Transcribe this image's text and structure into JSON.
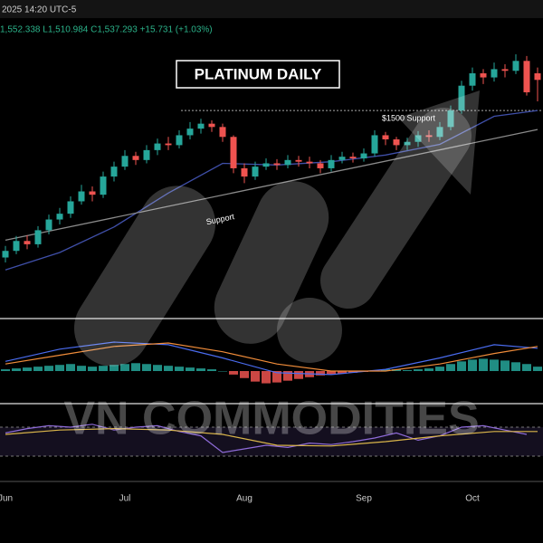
{
  "header": {
    "datetime": "2025 14:20 UTC-5",
    "ohlc": "1,552.338 L1,510.984 C1,537.293 +15.731 (+1.03%)"
  },
  "watermark": "VN COMMODITIES",
  "chart_data": [
    {
      "type": "candlestick",
      "title": "PLATINUM DAILY",
      "up_color": "#26a69a",
      "down_color": "#ef5350",
      "categories": [
        "Jun",
        null,
        null,
        null,
        null,
        null,
        null,
        null,
        null,
        null,
        null,
        "Jul",
        null,
        null,
        null,
        null,
        null,
        null,
        null,
        null,
        null,
        null,
        "Aug",
        null,
        null,
        null,
        null,
        null,
        null,
        null,
        null,
        null,
        null,
        "Sep",
        null,
        null,
        null,
        null,
        null,
        null,
        null,
        null,
        null,
        "Oct",
        null,
        null,
        null,
        null,
        null,
        null
      ],
      "open": [
        1322,
        1330,
        1342,
        1338,
        1355,
        1368,
        1375,
        1390,
        1402,
        1398,
        1420,
        1432,
        1445,
        1440,
        1452,
        1460,
        1458,
        1470,
        1478,
        1484,
        1480,
        1468,
        1430,
        1420,
        1432,
        1436,
        1434,
        1440,
        1438,
        1436,
        1430,
        1440,
        1444,
        1442,
        1448,
        1470,
        1465,
        1458,
        1462,
        1470,
        1468,
        1480,
        1500,
        1530,
        1545,
        1540,
        1550,
        1548,
        1560,
        1545
      ],
      "high": [
        1336,
        1348,
        1349,
        1360,
        1374,
        1382,
        1396,
        1410,
        1408,
        1426,
        1438,
        1452,
        1450,
        1458,
        1466,
        1468,
        1476,
        1486,
        1490,
        1488,
        1484,
        1470,
        1436,
        1438,
        1442,
        1441,
        1446,
        1445,
        1444,
        1440,
        1446,
        1450,
        1449,
        1454,
        1476,
        1474,
        1468,
        1467,
        1475,
        1476,
        1486,
        1506,
        1536,
        1552,
        1550,
        1558,
        1556,
        1568,
        1566,
        1552
      ],
      "low": [
        1316,
        1326,
        1332,
        1334,
        1350,
        1362,
        1370,
        1386,
        1390,
        1394,
        1414,
        1428,
        1434,
        1436,
        1446,
        1452,
        1454,
        1465,
        1472,
        1474,
        1462,
        1424,
        1412,
        1416,
        1428,
        1428,
        1430,
        1432,
        1430,
        1424,
        1426,
        1436,
        1437,
        1438,
        1444,
        1458,
        1452,
        1452,
        1456,
        1462,
        1464,
        1476,
        1496,
        1524,
        1532,
        1535,
        1540,
        1544,
        1518,
        1511
      ],
      "close": [
        1330,
        1342,
        1338,
        1355,
        1368,
        1375,
        1390,
        1402,
        1398,
        1420,
        1432,
        1445,
        1440,
        1452,
        1460,
        1458,
        1470,
        1478,
        1484,
        1480,
        1468,
        1430,
        1420,
        1432,
        1436,
        1434,
        1440,
        1438,
        1436,
        1430,
        1440,
        1444,
        1442,
        1448,
        1470,
        1465,
        1458,
        1462,
        1470,
        1468,
        1480,
        1500,
        1530,
        1545,
        1540,
        1550,
        1548,
        1560,
        1522,
        1537
      ],
      "lines": [
        {
          "color": "#3f4fa8",
          "x": [
            0,
            5,
            10,
            15,
            20,
            25,
            30,
            35,
            40,
            45,
            49
          ],
          "values": [
            1307,
            1328,
            1359,
            1400,
            1436,
            1434,
            1438,
            1446,
            1459,
            1493,
            1500
          ]
        },
        {
          "color": "#8a8a8a",
          "x": [
            0,
            49
          ],
          "values": [
            1343,
            1477
          ],
          "label": "Support"
        }
      ],
      "support_level": {
        "value": 1500,
        "label": "$1500 Support"
      }
    },
    {
      "type": "macd",
      "pos_color": "#26a69a",
      "neg_color": "#ef5350",
      "histogram": [
        2,
        3,
        4,
        5,
        6,
        7,
        8,
        6,
        5,
        6,
        7,
        8,
        9,
        8,
        7,
        6,
        5,
        4,
        3,
        2,
        0,
        -4,
        -8,
        -12,
        -14,
        -13,
        -11,
        -9,
        -7,
        -5,
        -4,
        -3,
        -2,
        -1,
        1,
        2,
        2,
        1,
        2,
        3,
        5,
        8,
        11,
        13,
        14,
        13,
        12,
        10,
        8,
        5
      ],
      "series": [
        {
          "color": "#4a6cf0",
          "x": [
            0,
            5,
            10,
            15,
            20,
            25,
            30,
            35,
            40,
            45,
            49
          ],
          "values": [
            11,
            25,
            33,
            30,
            15,
            -2,
            -4,
            2,
            15,
            30,
            26
          ]
        },
        {
          "color": "#f08c3a",
          "x": [
            0,
            5,
            10,
            15,
            20,
            25,
            30,
            35,
            40,
            45,
            49
          ],
          "values": [
            8,
            18,
            28,
            32,
            22,
            8,
            0,
            0,
            8,
            20,
            28
          ]
        }
      ]
    },
    {
      "type": "rsi",
      "ylim": [
        0,
        100
      ],
      "levels": [
        70,
        30
      ],
      "series": [
        {
          "color": "#8e6bd8",
          "x": [
            0,
            2,
            4,
            6,
            8,
            10,
            12,
            14,
            16,
            18,
            20,
            22,
            24,
            26,
            28,
            30,
            32,
            34,
            36,
            38,
            40,
            42,
            44,
            46,
            48
          ],
          "values": [
            62,
            68,
            72,
            70,
            74,
            66,
            70,
            72,
            64,
            58,
            35,
            40,
            45,
            42,
            48,
            46,
            50,
            55,
            62,
            52,
            58,
            70,
            72,
            66,
            60
          ]
        },
        {
          "color": "#d9b54a",
          "x": [
            0,
            5,
            10,
            15,
            20,
            25,
            30,
            35,
            40,
            45,
            49
          ],
          "values": [
            60,
            66,
            68,
            66,
            60,
            45,
            44,
            50,
            58,
            64,
            64
          ]
        }
      ]
    }
  ]
}
